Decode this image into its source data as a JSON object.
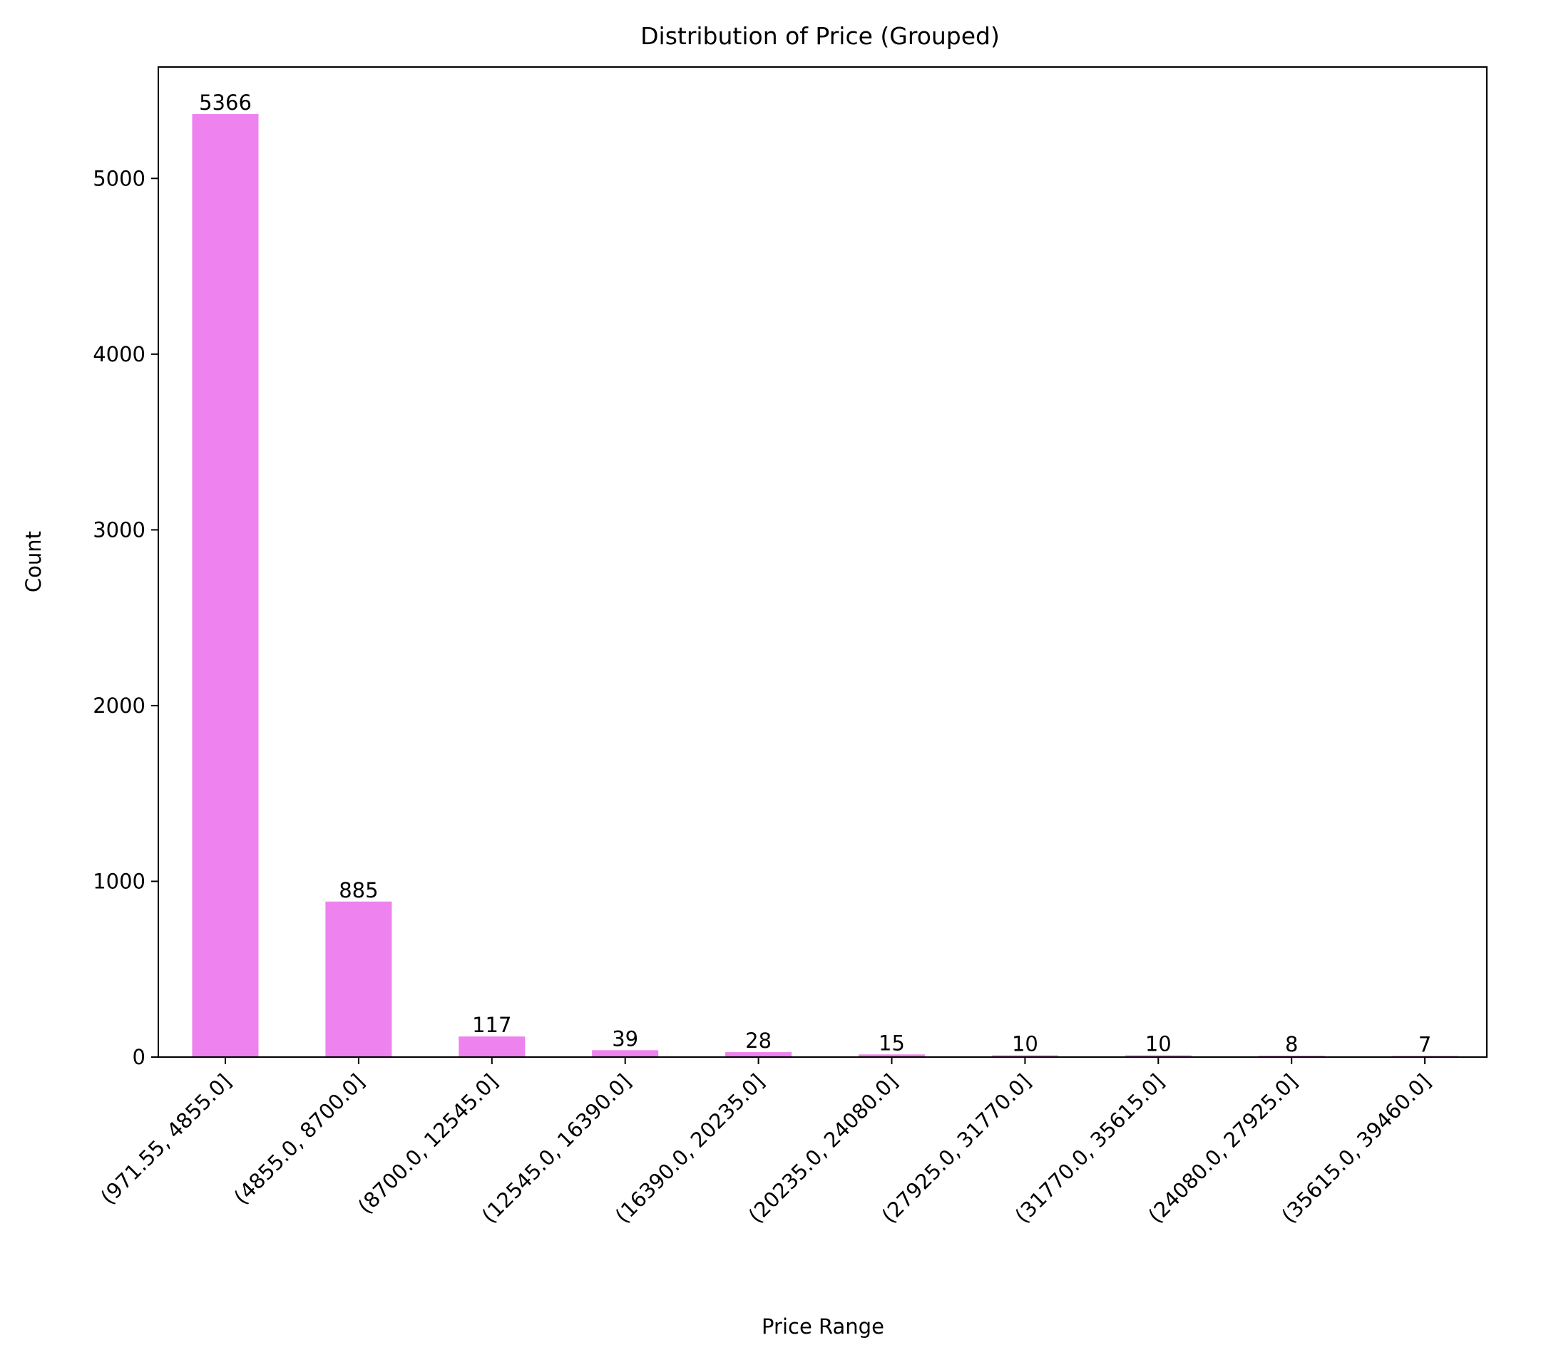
{
  "chart_data": {
    "type": "bar",
    "title": "Distribution of Price (Grouped)",
    "xlabel": "Price Range",
    "ylabel": "Count",
    "categories": [
      "(971.55, 4855.0]",
      "(4855.0, 8700.0]",
      "(8700.0, 12545.0]",
      "(12545.0, 16390.0]",
      "(16390.0, 20235.0]",
      "(20235.0, 24080.0]",
      "(27925.0, 31770.0]",
      "(31770.0, 35615.0]",
      "(24080.0, 27925.0]",
      "(35615.0, 39460.0]"
    ],
    "values": [
      5366,
      885,
      117,
      39,
      28,
      15,
      10,
      10,
      8,
      7
    ],
    "ylim": [
      0,
      5634
    ],
    "yticks": [
      0,
      1000,
      2000,
      3000,
      4000,
      5000
    ],
    "grid": false,
    "bar_color": "#ee82ee",
    "data_labels": true
  }
}
